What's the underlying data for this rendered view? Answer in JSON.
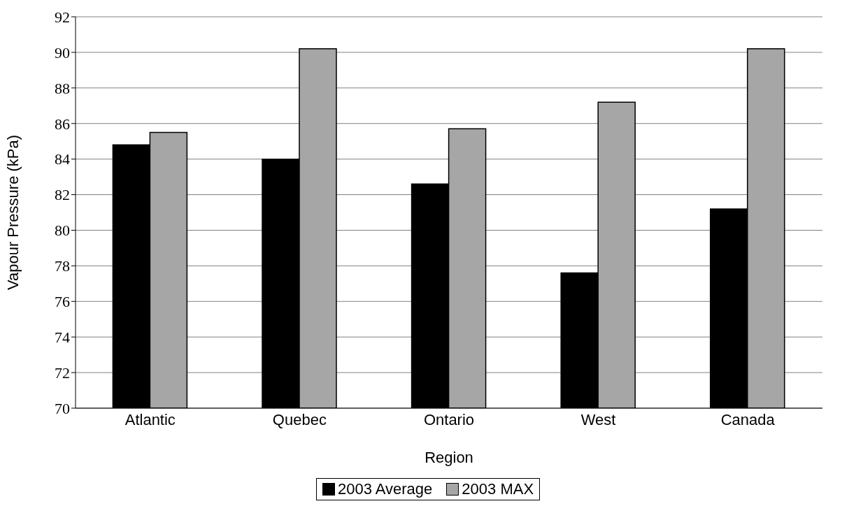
{
  "chart_data": {
    "type": "bar",
    "xlabel": "Region",
    "ylabel": "Vapour Pressure (kPa)",
    "categories": [
      "Atlantic",
      "Quebec",
      "Ontario",
      "West",
      "Canada"
    ],
    "series": [
      {
        "name": "2003 Average",
        "color": "#000000",
        "values": [
          84.8,
          84.0,
          82.6,
          77.6,
          81.2
        ]
      },
      {
        "name": "2003 MAX",
        "color": "#a6a6a6",
        "values": [
          85.5,
          90.2,
          85.7,
          87.2,
          90.2
        ]
      }
    ],
    "ylim": [
      70,
      92
    ],
    "yticks": [
      70,
      72,
      74,
      76,
      78,
      80,
      82,
      84,
      86,
      88,
      90,
      92
    ],
    "grid": "y",
    "legend": "bottom"
  }
}
